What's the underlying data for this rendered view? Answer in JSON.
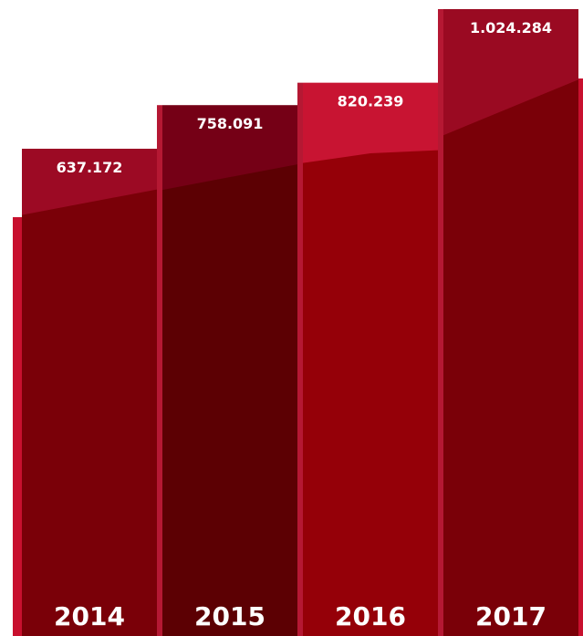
{
  "chart_data": {
    "type": "bar",
    "categories": [
      "2014",
      "2015",
      "2016",
      "2017"
    ],
    "values": [
      637172,
      758091,
      820239,
      1024284
    ],
    "value_labels": [
      "637.172",
      "758.091",
      "820.239",
      "1.024.284"
    ],
    "title": "",
    "xlabel": "",
    "ylabel": "",
    "grid": false,
    "legend": "none",
    "colors": {
      "bar_tops": [
        "#9c0a24",
        "#750016",
        "#c81432",
        "#9a0a22"
      ],
      "bar_bodies": [
        "#7a0008",
        "#5c0003",
        "#950008",
        "#7a0008"
      ],
      "side_strip": "#c8102e",
      "separator": "#b51833",
      "text": "#ffffff"
    }
  }
}
